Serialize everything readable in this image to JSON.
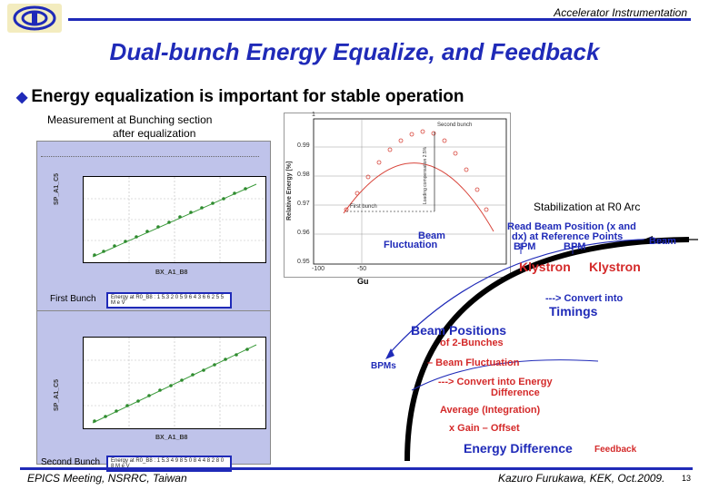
{
  "header": {
    "label": "Accelerator Instrumentation"
  },
  "title": "Dual-bunch Energy Equalize, and Feedback",
  "bullet": "Energy equalization is important for stable operation",
  "measurement_caption_1": "Measurement at Bunching section",
  "measurement_caption_2": "after equalization",
  "stabilization_caption": "Stabilization at R0 Arc",
  "first_bunch_label": "First Bunch",
  "second_bunch_label": "Second Bunch",
  "plot1": {
    "xlabel": "BX_A1_B8",
    "ylabel": "SP_A1_C5",
    "energy_box": "Energy at R0_B8 : 1 5.3 2 0 5 9 6 4 3 6 6 2 5 5 M e V"
  },
  "plot2": {
    "xlabel": "BX_A1_B8",
    "ylabel": "SP_A1_C5",
    "energy_box": "Energy at R0_B8 : 1 5.3 4 9 8 5 0 8 4 4 8 2 8 0 8 M e V"
  },
  "energy_plot": {
    "ylabel": "Relative Energy [%]",
    "yticks": [
      "1",
      "0.99",
      "0.98",
      "0.97",
      "0.96",
      "0.95"
    ],
    "xticks": [
      "-100",
      "-50"
    ],
    "xlabel_partial": "Gu",
    "second_bunch": "Second bunch",
    "first_bunch": "First bunch",
    "loading": "Loading compensation 2.5%"
  },
  "diagram": {
    "read_beam": "Read Beam Position (x and",
    "read_beam2": "dx)  at Reference Points",
    "bpm1": "BPM",
    "bpm2": "BPM",
    "beam": "Beam",
    "beam_fluct1": "Beam",
    "beam_fluct2": "Fluctuation",
    "klystron1": "Klystron",
    "klystron2": "Klystron",
    "convert_timings1": "---> Convert into",
    "convert_timings2": "Timings",
    "beam_positions1": "Beam Positions",
    "beam_positions2": "of 2-Bunches",
    "bpms": "BPMs",
    "beam_fluctuation": "–  Beam Fluctuation",
    "convert_energy1": "---> Convert into Energy",
    "convert_energy2": "Difference",
    "average": "Average (Integration)",
    "gain": "x  Gain – Offset",
    "energy_diff": "Energy Difference",
    "feedback": "Feedback"
  },
  "footer": {
    "left": "EPICS Meeting, NSRRC, Taiwan",
    "right": "Kazuro Furukawa, KEK, Oct.2009.",
    "page": "13"
  }
}
